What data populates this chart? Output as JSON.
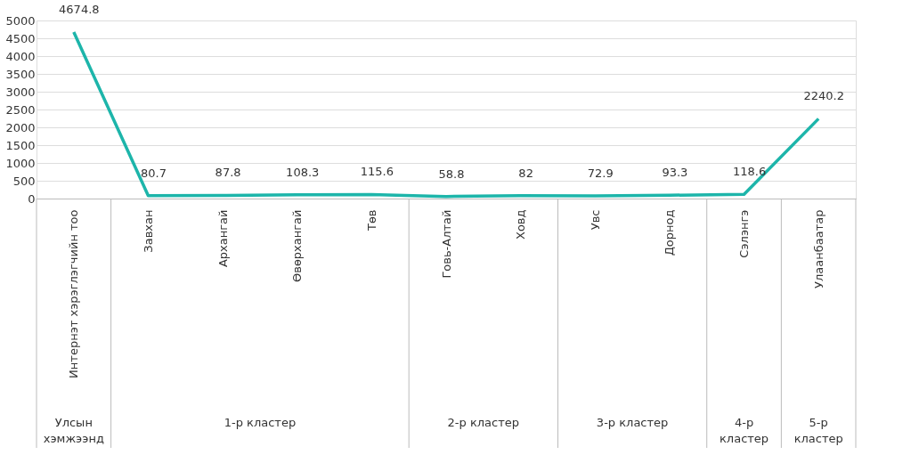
{
  "chart_data": {
    "type": "line",
    "categories": [
      "Интернэт хэрэглэгчийн тоо",
      "Завхан",
      "Архангай",
      "Өвөрхангай",
      "Төв",
      "Говь-Алтай",
      "Ховд",
      "Увс",
      "Дорнод",
      "Сэлэнгэ",
      "Улаанбаатар"
    ],
    "series": [
      {
        "color": "#1db5aa",
        "values": [
          4674.8,
          80.7,
          87.8,
          108.3,
          115.6,
          58.8,
          82,
          72.9,
          93.3,
          118.6,
          2240.2
        ]
      }
    ],
    "ylim": [
      0,
      5000
    ],
    "yticks": [
      0,
      500,
      1000,
      1500,
      2000,
      2500,
      3000,
      3500,
      4000,
      4500,
      5000
    ],
    "grid": "y",
    "data_labels": true,
    "marker": "none",
    "line_style": "solid",
    "annotations": [
      "Улсын хэмжээнд",
      "1-р кластер",
      "2-р кластер",
      "3-р кластер",
      "4-р кластер",
      "5-р кластер"
    ]
  }
}
